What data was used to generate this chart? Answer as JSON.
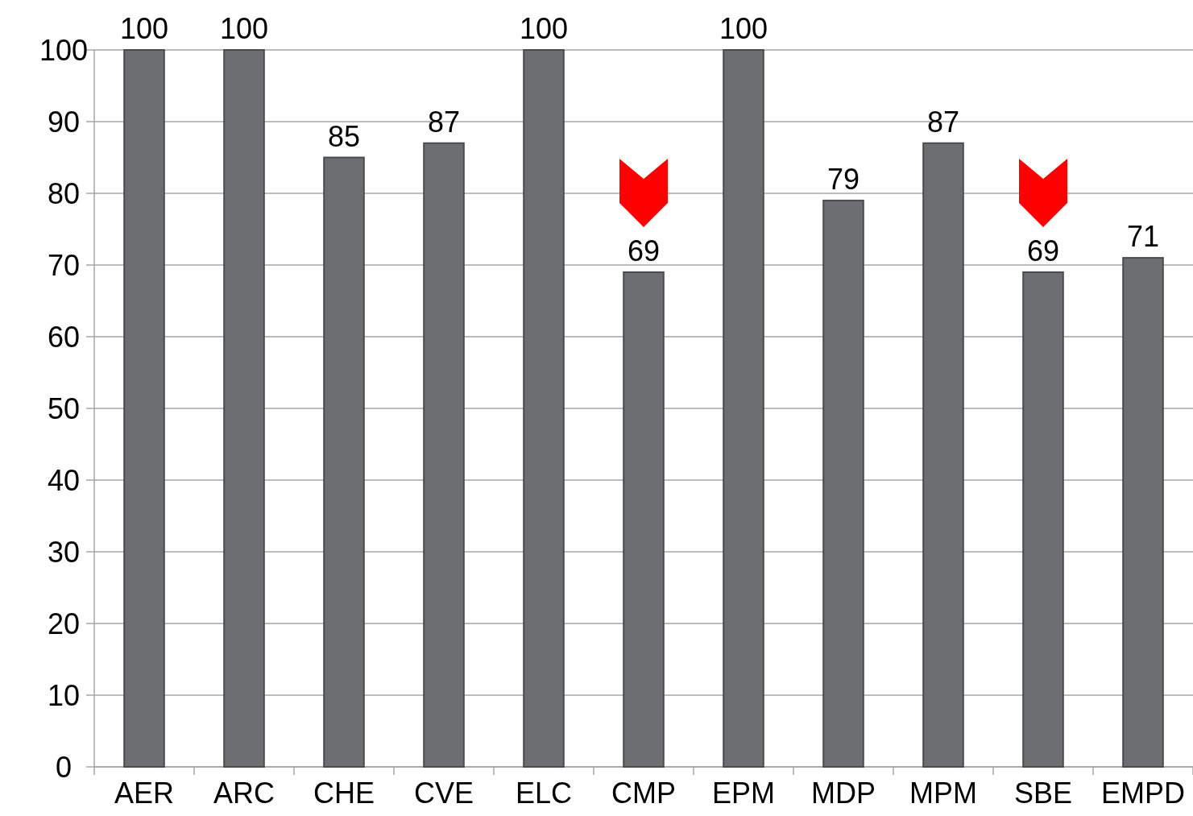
{
  "chart_data": {
    "type": "bar",
    "categories": [
      "AER",
      "ARC",
      "CHE",
      "CVE",
      "ELC",
      "CMP",
      "EPM",
      "MDP",
      "MPM",
      "SBE",
      "EMPD"
    ],
    "values": [
      100,
      100,
      85,
      87,
      100,
      69,
      100,
      79,
      87,
      69,
      71
    ],
    "color": "#6d6e72",
    "ylim": [
      0,
      100
    ],
    "yticks": [
      0,
      10,
      20,
      30,
      40,
      50,
      60,
      70,
      80,
      90,
      100
    ],
    "grid": "y",
    "data_labels": true
  }
}
